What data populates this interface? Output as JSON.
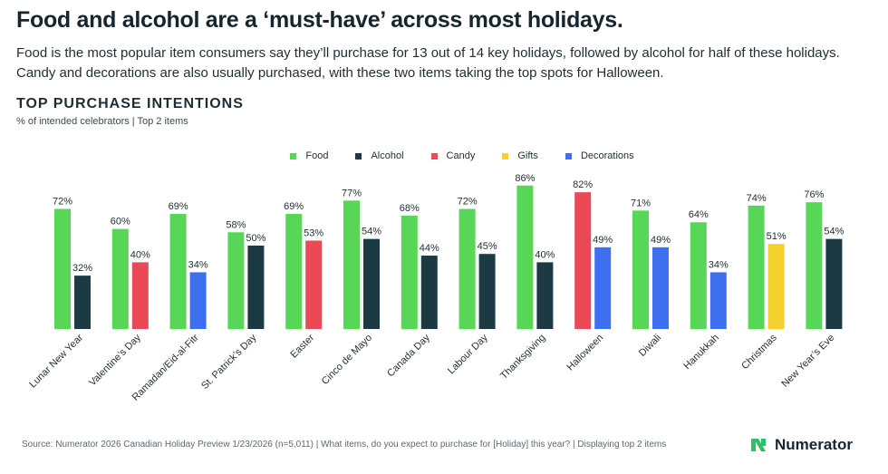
{
  "headline": "Food and alcohol are a ‘must-have’ across most holidays.",
  "subtitle": "Food is the most popular item consumers say they’ll purchase for 13 out of 14 key holidays, followed by alcohol for half of these holidays. Candy and decorations are also usually purchased, with these two items taking the top spots for Halloween.",
  "section_title": "TOP PURCHASE INTENTIONS",
  "section_subtitle": "% of intended celebrators | Top 2 items",
  "legend": [
    {
      "label": "Food",
      "color": "#57d657"
    },
    {
      "label": "Alcohol",
      "color": "#1b3a44"
    },
    {
      "label": "Candy",
      "color": "#ea4a55"
    },
    {
      "label": "Gifts",
      "color": "#f4d12c"
    },
    {
      "label": "Decorations",
      "color": "#3d6ff0"
    }
  ],
  "chart_data": {
    "type": "bar",
    "title": "TOP PURCHASE INTENTIONS",
    "subtitle": "% of intended celebrators | Top 2 items",
    "unit": "%",
    "ylim": [
      0,
      100
    ],
    "grid": false,
    "legend_position": "top-center",
    "categories": [
      "Lunar New Year",
      "Valentine’s Day",
      "Ramadan/Eid-al-Fitr",
      "St. Patrick’s Day",
      "Easter",
      "Cinco de Mayo",
      "Canada Day",
      "Labour Day",
      "Thanksgiving",
      "Halloween",
      "Diwali",
      "Hanukkah",
      "Christmas",
      "New Year’s Eve"
    ],
    "groups": [
      {
        "holiday": "Lunar New Year",
        "bars": [
          {
            "series": "Food",
            "value": 72
          },
          {
            "series": "Alcohol",
            "value": 32
          }
        ]
      },
      {
        "holiday": "Valentine’s Day",
        "bars": [
          {
            "series": "Food",
            "value": 60
          },
          {
            "series": "Candy",
            "value": 40
          }
        ]
      },
      {
        "holiday": "Ramadan/Eid-al-Fitr",
        "bars": [
          {
            "series": "Food",
            "value": 69
          },
          {
            "series": "Decorations",
            "value": 34
          }
        ]
      },
      {
        "holiday": "St. Patrick’s Day",
        "bars": [
          {
            "series": "Food",
            "value": 58
          },
          {
            "series": "Alcohol",
            "value": 50
          }
        ]
      },
      {
        "holiday": "Easter",
        "bars": [
          {
            "series": "Food",
            "value": 69
          },
          {
            "series": "Candy",
            "value": 53
          }
        ]
      },
      {
        "holiday": "Cinco de Mayo",
        "bars": [
          {
            "series": "Food",
            "value": 77
          },
          {
            "series": "Alcohol",
            "value": 54
          }
        ]
      },
      {
        "holiday": "Canada Day",
        "bars": [
          {
            "series": "Food",
            "value": 68
          },
          {
            "series": "Alcohol",
            "value": 44
          }
        ]
      },
      {
        "holiday": "Labour Day",
        "bars": [
          {
            "series": "Food",
            "value": 72
          },
          {
            "series": "Alcohol",
            "value": 45
          }
        ]
      },
      {
        "holiday": "Thanksgiving",
        "bars": [
          {
            "series": "Food",
            "value": 86
          },
          {
            "series": "Alcohol",
            "value": 40
          }
        ]
      },
      {
        "holiday": "Halloween",
        "bars": [
          {
            "series": "Candy",
            "value": 82
          },
          {
            "series": "Decorations",
            "value": 49
          }
        ]
      },
      {
        "holiday": "Diwali",
        "bars": [
          {
            "series": "Food",
            "value": 71
          },
          {
            "series": "Decorations",
            "value": 49
          }
        ]
      },
      {
        "holiday": "Hanukkah",
        "bars": [
          {
            "series": "Food",
            "value": 64
          },
          {
            "series": "Decorations",
            "value": 34
          }
        ]
      },
      {
        "holiday": "Christmas",
        "bars": [
          {
            "series": "Food",
            "value": 74
          },
          {
            "series": "Gifts",
            "value": 51
          }
        ]
      },
      {
        "holiday": "New Year’s Eve",
        "bars": [
          {
            "series": "Food",
            "value": 76
          },
          {
            "series": "Alcohol",
            "value": 54
          }
        ]
      }
    ]
  },
  "source": "Source: Numerator 2026 Canadian Holiday Preview 1/23/2026 (n=5,011) | What items, do you expect to purchase for [Holiday] this year? | Displaying top 2 items",
  "brand": {
    "name": "Numerator",
    "logo_icon": "numerator-n-logo-icon",
    "logo_color": "#2fbf6a"
  }
}
